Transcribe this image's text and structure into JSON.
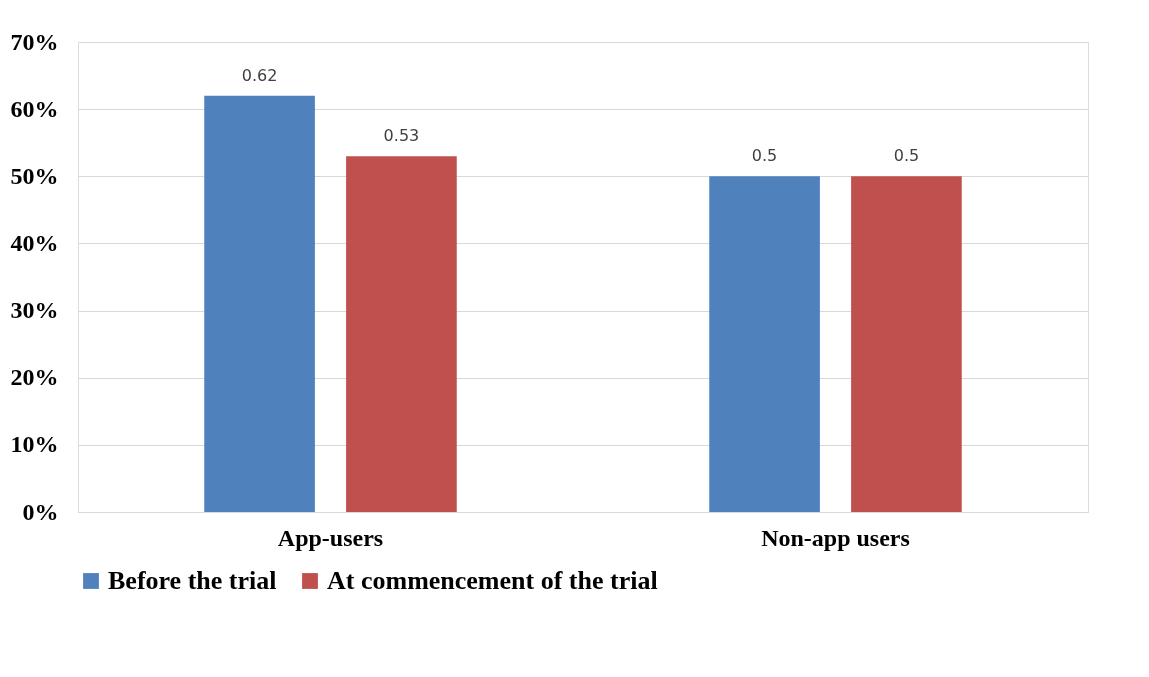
{
  "chart_data": {
    "type": "bar",
    "categories": [
      "App-users",
      "Non-app users"
    ],
    "series": [
      {
        "name": "Before the trial",
        "color": "#4f81bd",
        "values": [
          0.62,
          0.5
        ]
      },
      {
        "name": "At commencement of the trial",
        "color": "#c0504d",
        "values": [
          0.53,
          0.5
        ]
      }
    ],
    "ylim": [
      0,
      0.7
    ],
    "yticks": [
      {
        "value": 0,
        "label": "0%"
      },
      {
        "value": 0.1,
        "label": "10%"
      },
      {
        "value": 0.2,
        "label": "20%"
      },
      {
        "value": 0.3,
        "label": "30%"
      },
      {
        "value": 0.4,
        "label": "40%"
      },
      {
        "value": 0.5,
        "label": "50%"
      },
      {
        "value": 0.6,
        "label": "60%"
      },
      {
        "value": 0.7,
        "label": "70%"
      }
    ],
    "grid": "y",
    "legend": "bottom",
    "data_labels": true
  }
}
